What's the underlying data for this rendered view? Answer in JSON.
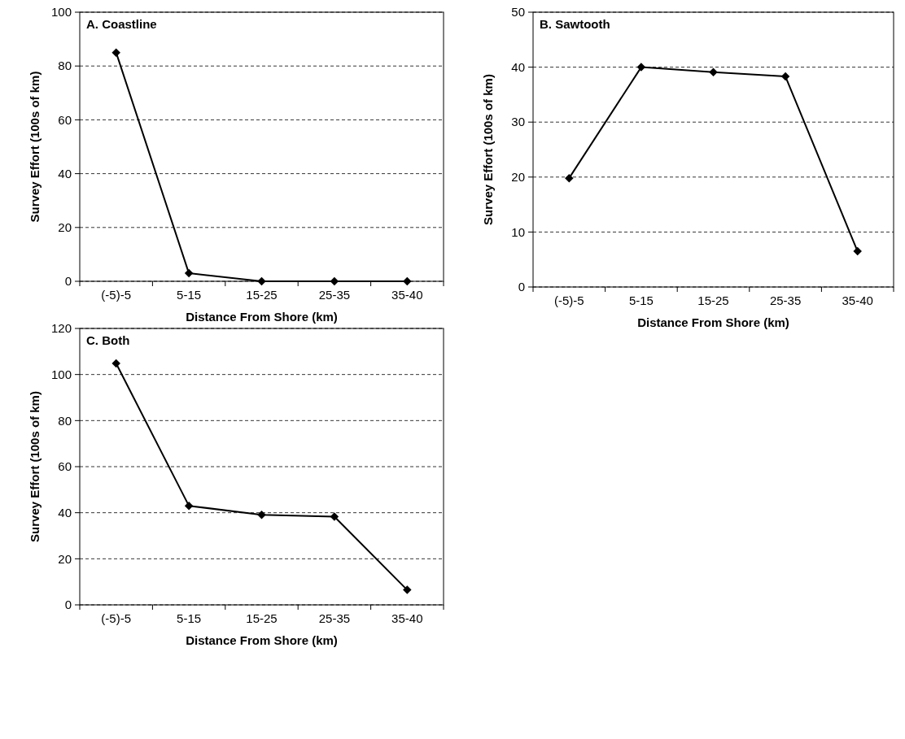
{
  "chart_data": [
    {
      "type": "line",
      "annotations": [
        "A. Coastline"
      ],
      "xlabel": "Distance From Shore (km)",
      "ylabel": "Survey Effort (100s of km)",
      "categories": [
        "(-5)-5",
        "5-15",
        "15-25",
        "25-35",
        "35-40"
      ],
      "series": [
        {
          "color": "#000000",
          "values": [
            85,
            3,
            0,
            0,
            0
          ]
        }
      ],
      "ylim": [
        0,
        100
      ],
      "yticks": [
        0,
        20,
        40,
        60,
        80,
        100
      ],
      "grid": "y",
      "marker": "diamond",
      "line_style": "solid"
    },
    {
      "type": "line",
      "annotations": [
        "B. Sawtooth"
      ],
      "xlabel": "Distance From Shore (km)",
      "ylabel": "Survey Effort (100s of km)",
      "categories": [
        "(-5)-5",
        "5-15",
        "15-25",
        "25-35",
        "35-40"
      ],
      "series": [
        {
          "color": "#000000",
          "values": [
            19.8,
            40,
            39.1,
            38.3,
            6.5
          ]
        }
      ],
      "ylim": [
        0,
        50
      ],
      "yticks": [
        0,
        10,
        20,
        30,
        40,
        50
      ],
      "grid": "y",
      "marker": "diamond",
      "line_style": "solid"
    },
    {
      "type": "line",
      "annotations": [
        "C. Both"
      ],
      "xlabel": "Distance From Shore (km)",
      "ylabel": "Survey Effort (100s of km)",
      "categories": [
        "(-5)-5",
        "5-15",
        "15-25",
        "25-35",
        "35-40"
      ],
      "series": [
        {
          "color": "#000000",
          "values": [
            104.8,
            43,
            39.1,
            38.3,
            6.5
          ]
        }
      ],
      "ylim": [
        0,
        120
      ],
      "yticks": [
        0,
        20,
        40,
        60,
        80,
        100,
        120
      ],
      "grid": "y",
      "marker": "diamond",
      "line_style": "solid"
    }
  ]
}
